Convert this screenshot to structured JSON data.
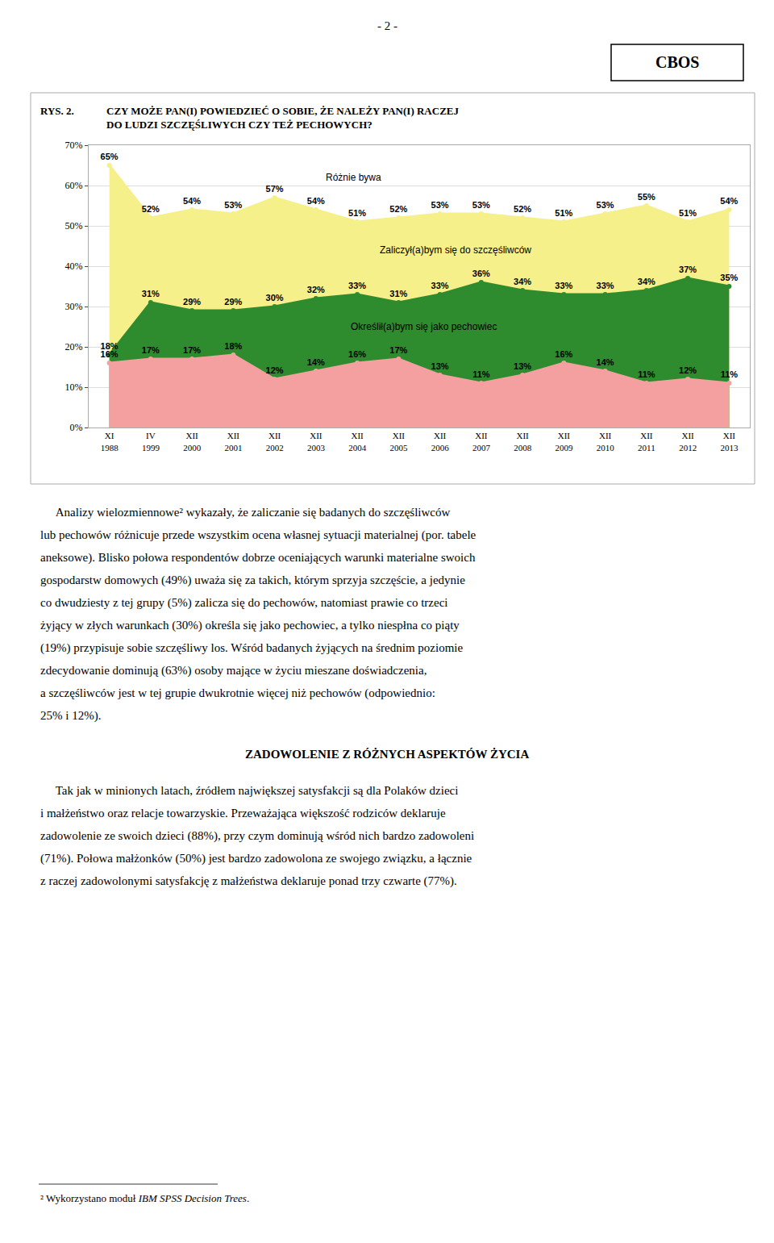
{
  "chart_data": {
    "type": "area",
    "title": "CZY MOŻE PAN(I) POWIEDZIEĆ O SOBIE, ŻE NALEŻY PAN(I) RACZEJ\nDO LUDZI SZCZĘŚLIWYCH CZY TEŻ PECHOWYCH?",
    "categories": [
      "XI\n1988",
      "IV\n1999",
      "XII\n2000",
      "XII\n2001",
      "XII\n2002",
      "XII\n2003",
      "XII\n2004",
      "XII\n2005",
      "XII\n2006",
      "XII\n2007",
      "XII\n2008",
      "XII\n2009",
      "XII\n2010",
      "XII\n2011",
      "XII\n2012",
      "XII\n2013"
    ],
    "series": [
      {
        "name": "Różnie bywa",
        "color": "#f5f08a",
        "values": [
          65,
          52,
          54,
          53,
          57,
          54,
          51,
          52,
          53,
          53,
          52,
          51,
          53,
          55,
          51,
          54
        ],
        "value_labels": [
          "65%",
          "52%",
          "54%",
          "53%",
          "57%",
          "54%",
          "51%",
          "52%",
          "53%",
          "53%",
          "52%",
          "51%",
          "53%",
          "55%",
          "51%",
          "54%"
        ]
      },
      {
        "name": "Zaliczył(a)bym się do szczęśliwców",
        "color": "#2e8b2e",
        "values": [
          18,
          31,
          29,
          29,
          30,
          32,
          33,
          31,
          33,
          36,
          34,
          33,
          33,
          34,
          37,
          35
        ],
        "value_labels": [
          "18%",
          "31%",
          "29%",
          "29%",
          "30%",
          "32%",
          "33%",
          "31%",
          "33%",
          "36%",
          "34%",
          "33%",
          "33%",
          "34%",
          "37%",
          "35%"
        ]
      },
      {
        "name": "Określił(a)bym się jako pechowiec",
        "color": "#f4a0a0",
        "values": [
          16,
          17,
          17,
          18,
          12,
          14,
          16,
          17,
          13,
          11,
          13,
          16,
          14,
          11,
          12,
          11
        ],
        "value_labels": [
          "16%",
          "17%",
          "17%",
          "18%",
          "12%",
          "14%",
          "16%",
          "17%",
          "13%",
          "11%",
          "13%",
          "16%",
          "14%",
          "11%",
          "12%",
          "11%"
        ]
      }
    ],
    "ylim": [
      0,
      70
    ],
    "yticks": [
      {
        "value": 0,
        "label": "0%"
      },
      {
        "value": 10,
        "label": "10%"
      },
      {
        "value": 20,
        "label": "20%"
      },
      {
        "value": 30,
        "label": "30%"
      },
      {
        "value": 40,
        "label": "40%"
      },
      {
        "value": 50,
        "label": "50%"
      },
      {
        "value": 60,
        "label": "60%"
      },
      {
        "value": 70,
        "label": "70%"
      }
    ],
    "grid": true,
    "data_labels": true,
    "annotations": [
      "- 2 -",
      "CBOS",
      "RYS. 2.",
      "     Analizy wielozmiennowe² wykazały, że zaliczanie się badanych do szczęśliwców\nlub pechowów różnicuje przede wszystkim ocena własnej sytuacji materialnej (por. tabele\naneksowe). Blisko połowa respondentów dobrze oceniających warunki materialne swoich\ngospodarstw domowych (49%) uważa się za takich, którym sprzyja szczęście, a jedynie\nco dwudziesty z tej grupy (5%) zalicza się do pechowów, natomiast prawie co trzeci\nżyjący w złych warunkach (30%) określa się jako pechowiec, a tylko niespłna co piąty\n(19%) przypisuje sobie szczęśliwy los. Wśród badanych żyjących na średnim poziomie\nzdecydowanie dominują (63%) osoby mające w życiu mieszane doświadczenia,\na szczęśliwców jest w tej grupie dwukrotnie więcej niż pechowów (odpowiednio:\n25% i 12%).",
      "ZADOWOLENIE Z RÓŻNYCH ASPEKTÓW ŻYCIA",
      "     Tak jak w minionych latach, źródłem największej satysfakcji są dla Polaków dzieci\ni małżeństwo oraz relacje towarzyskie. Przeważająca większość rodziców deklaruje\nzadowolenie ze swoich dzieci (88%), przy czym dominują wśród nich bardzo zadowoleni\n(71%). Połowa małżonków (50%) jest bardzo zadowolona ze swojego związku, a łącznie\nz raczej zadowolonymi satysfakcję z małżeństwa deklaruje ponad trzy czwarte (77%).",
      "² Wykorzystano moduł ",
      "IBM SPSS Decision Trees",
      "."
    ]
  }
}
